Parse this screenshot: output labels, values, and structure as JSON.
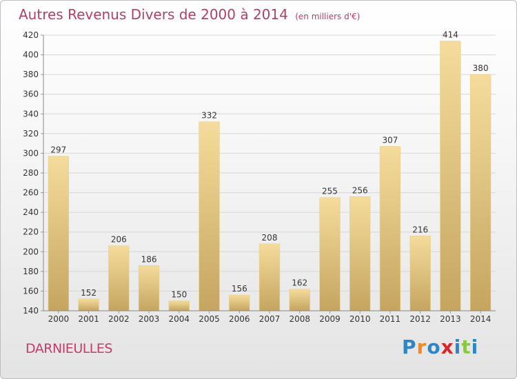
{
  "chart_data": {
    "type": "bar",
    "title": "Autres Revenus Divers de 2000 à 2014",
    "subtitle": "(en milliers d'€)",
    "categories": [
      "2000",
      "2001",
      "2002",
      "2003",
      "2004",
      "2005",
      "2006",
      "2007",
      "2008",
      "2009",
      "2010",
      "2011",
      "2012",
      "2013",
      "2014"
    ],
    "values": [
      297,
      152,
      206,
      186,
      150,
      332,
      156,
      208,
      162,
      255,
      256,
      307,
      216,
      414,
      380
    ],
    "ylim": [
      140,
      420
    ],
    "yticks": [
      140,
      160,
      180,
      200,
      220,
      240,
      260,
      280,
      300,
      320,
      340,
      360,
      380,
      400,
      420
    ],
    "grid": true,
    "xlabel": "",
    "ylabel": ""
  },
  "commune": "DARNIEULLES",
  "logo": {
    "text": "Proxiti",
    "letters": [
      {
        "ch": "P",
        "color": "#2e86c9"
      },
      {
        "ch": "r",
        "color": "#f08a1c"
      },
      {
        "ch": "o",
        "color": "#2e86c9"
      },
      {
        "ch": "x",
        "color": "#d8262a"
      },
      {
        "ch": "i",
        "color": "#2e86c9"
      },
      {
        "ch": "t",
        "color": "#8dc63f"
      },
      {
        "ch": "i",
        "color": "#2e86c9"
      }
    ]
  },
  "colors": {
    "bar_top": "#f5dc9c",
    "bar_bottom": "#c5a560",
    "title": "#b0406a",
    "commune": "#c83a6a"
  }
}
